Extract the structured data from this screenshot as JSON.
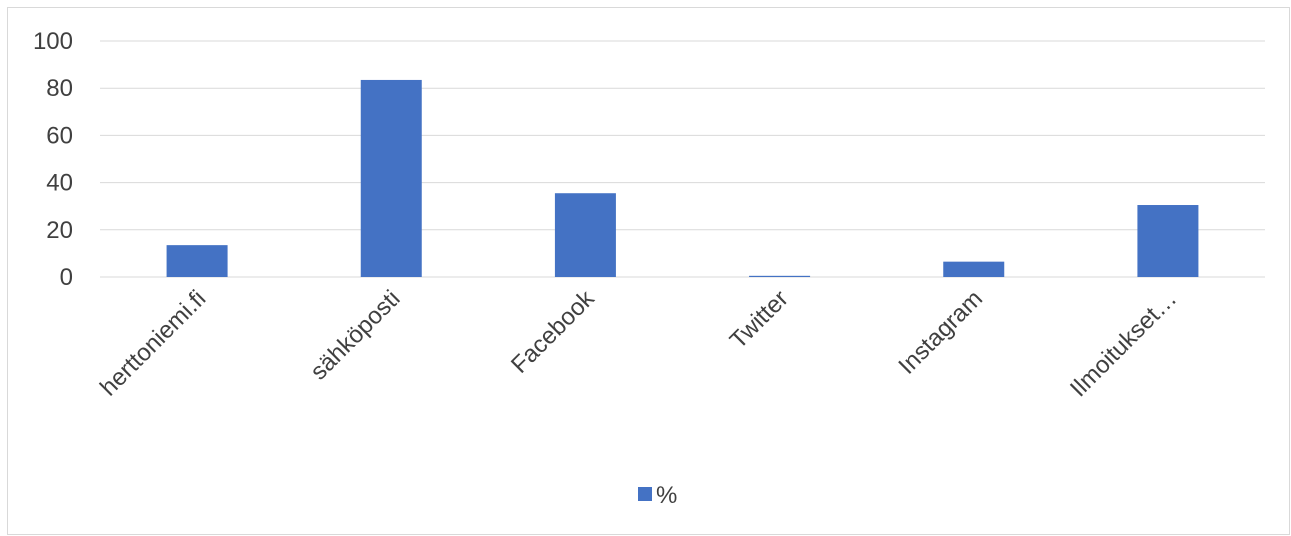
{
  "chart_data": {
    "type": "bar",
    "categories": [
      "herttoniemi.fi",
      "sähköposti",
      "Facebook",
      "Twitter",
      "Instagram",
      "Ilmoitukset…"
    ],
    "series": [
      {
        "name": "%",
        "values": [
          13.5,
          83.5,
          35.5,
          0.5,
          6.5,
          30.5
        ],
        "color": "#4472c4"
      }
    ],
    "ylim": [
      0,
      100
    ],
    "yticks": [
      "0",
      "20",
      "40",
      "60",
      "80",
      "100"
    ],
    "grid": true,
    "legend_position": "bottom"
  }
}
